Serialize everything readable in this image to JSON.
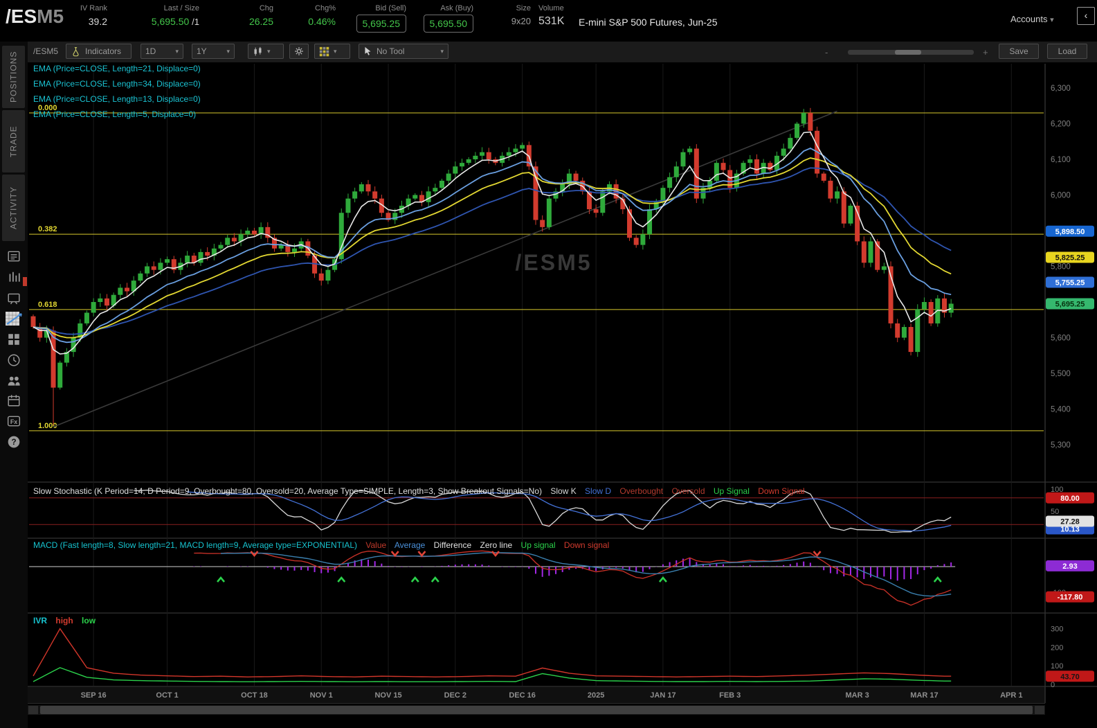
{
  "header": {
    "symbol_prefix": "/ES",
    "symbol_suffix": "M5",
    "iv_rank": {
      "label": "IV Rank",
      "value": "39.2"
    },
    "last_size": {
      "label": "Last / Size",
      "value": "5,695.50",
      "size_suffix": "/1"
    },
    "chg": {
      "label": "Chg",
      "value": "26.25"
    },
    "chg_pct": {
      "label": "Chg%",
      "value": "0.46%"
    },
    "bid": {
      "label": "Bid (Sell)",
      "value": "5,695.25"
    },
    "ask": {
      "label": "Ask (Buy)",
      "value": "5,695.50"
    },
    "size": {
      "label": "Size",
      "value": "9x20"
    },
    "volume": {
      "label": "Volume",
      "value": "531K"
    },
    "description": "E-mini S&P 500 Futures, Jun-25",
    "accounts_label": "Accounts",
    "collapse_glyph": "‹"
  },
  "toolbar": {
    "symbol": "/ESM5",
    "indicators": "Indicators",
    "timeframe": "1D",
    "range": "1Y",
    "tool": "No Tool",
    "save": "Save",
    "load": "Load",
    "zoom_minus": "-",
    "zoom_plus": "+"
  },
  "sidebar": {
    "tabs": [
      {
        "label": "POSITIONS"
      },
      {
        "label": "TRADE"
      },
      {
        "label": "ACTIVITY"
      }
    ]
  },
  "studies": {
    "ema_labels": [
      "EMA (Price=CLOSE, Length=21, Displace=0)",
      "EMA (Price=CLOSE, Length=34, Displace=0)",
      "EMA (Price=CLOSE, Length=13, Displace=0)",
      "EMA (Price=CLOSE, Length=5, Displace=0)"
    ],
    "stochastic": {
      "title": "Slow Stochastic (K Period=14, D Period=9, Overbought=80, Oversold=20, Average Type=SIMPLE, Length=3, Show Breakout Signals=No)",
      "legend": [
        {
          "label": "Slow K",
          "color": "#d8d8d8"
        },
        {
          "label": "Slow D",
          "color": "#4472d8"
        },
        {
          "label": "Overbought",
          "color": "#b33a2e"
        },
        {
          "label": "Oversold",
          "color": "#b33a2e"
        },
        {
          "label": "Up Signal",
          "color": "#2bd24b"
        },
        {
          "label": "Down Signal",
          "color": "#d23b2e"
        }
      ]
    },
    "macd": {
      "title": "MACD (Fast length=8, Slow length=21, MACD length=9, Average type=EXPONENTIAL)",
      "legend": [
        {
          "label": "Value",
          "color": "#c0392b"
        },
        {
          "label": "Average",
          "color": "#4a90d9"
        },
        {
          "label": "Difference",
          "color": "#e0e0e0"
        },
        {
          "label": "Zero line",
          "color": "#e0e0e0"
        },
        {
          "label": "Up signal",
          "color": "#2bd24b"
        },
        {
          "label": "Down signal",
          "color": "#d23b2e"
        }
      ]
    },
    "ivr": {
      "legend": [
        {
          "label": "IVR",
          "color": "#17c3cf"
        },
        {
          "label": "high",
          "color": "#d23b2e"
        },
        {
          "label": "low",
          "color": "#2bd24b"
        }
      ]
    }
  },
  "chart_data": {
    "type": "candlestick",
    "symbol_watermark": "/ESM5",
    "closes": [
      5630,
      5600,
      5620,
      5460,
      5530,
      5560,
      5600,
      5640,
      5670,
      5700,
      5710,
      5690,
      5720,
      5740,
      5730,
      5760,
      5780,
      5800,
      5790,
      5810,
      5820,
      5790,
      5810,
      5830,
      5810,
      5840,
      5830,
      5850,
      5860,
      5880,
      5870,
      5890,
      5900,
      5890,
      5910,
      5880,
      5850,
      5860,
      5840,
      5850,
      5870,
      5830,
      5780,
      5760,
      5790,
      5820,
      5950,
      5990,
      6010,
      6030,
      6010,
      5990,
      5950,
      5930,
      5950,
      5970,
      5990,
      6000,
      5980,
      6010,
      6020,
      6040,
      6060,
      6080,
      6090,
      6100,
      6110,
      6120,
      6100,
      6090,
      6110,
      6120,
      6130,
      6140,
      6080,
      5930,
      5910,
      5990,
      6010,
      6030,
      6060,
      6040,
      6010,
      5960,
      5950,
      6010,
      6030,
      5990,
      5960,
      5880,
      5860,
      5890,
      5960,
      5980,
      6020,
      6050,
      6080,
      6120,
      6130,
      5990,
      6020,
      6040,
      6090,
      6070,
      6020,
      6060,
      6090,
      6100,
      6060,
      6090,
      6070,
      6110,
      6130,
      6160,
      6200,
      6230,
      6180,
      6060,
      6040,
      5990,
      6010,
      5920,
      5970,
      5870,
      5810,
      5870,
      5790,
      5800,
      5640,
      5600,
      5630,
      5560,
      5680,
      5700,
      5640,
      5710,
      5670,
      5695.25
    ],
    "low_overrides": {
      "3": 5355
    },
    "ema_series": [
      {
        "length": 34,
        "color": "#2f55b0"
      },
      {
        "length": 21,
        "color": "#e3d832"
      },
      {
        "length": 13,
        "color": "#6a9fe0"
      },
      {
        "length": 5,
        "color": "#e9e9e9"
      }
    ],
    "fib_levels": [
      {
        "label": "0.000",
        "price": 6230
      },
      {
        "label": "0.382",
        "price": 5890
      },
      {
        "label": "0.618",
        "price": 5679
      },
      {
        "label": "1.000",
        "price": 5339
      }
    ],
    "trendline": {
      "i1": 3,
      "p1": 5350,
      "i2": 120,
      "p2": 6235
    },
    "price_axis": {
      "ticks": [
        {
          "label": "6,300",
          "value": 6300
        },
        {
          "label": "6,200",
          "value": 6200
        },
        {
          "label": "6,100",
          "value": 6100
        },
        {
          "label": "6,000",
          "value": 6000
        },
        {
          "label": "5,800",
          "value": 5800
        },
        {
          "label": "5,600",
          "value": 5600
        },
        {
          "label": "5,500",
          "value": 5500
        },
        {
          "label": "5,400",
          "value": 5400
        },
        {
          "label": "5,300",
          "value": 5300
        }
      ],
      "badges": [
        {
          "text": "5,898.50",
          "value": 5898.5,
          "bg": "#1766d1",
          "fg": "#ffffff"
        },
        {
          "text": "5,825.25",
          "value": 5825.25,
          "bg": "#e8d51f",
          "fg": "#111111"
        },
        {
          "text": "5,755.25",
          "value": 5755.25,
          "bg": "#2f6fd6",
          "fg": "#ffffff"
        },
        {
          "text": "5,695.25",
          "value": 5695.25,
          "bg": "#35b86e",
          "fg": "#07310f"
        }
      ]
    },
    "date_ticks": [
      {
        "label": "SEP 16",
        "i": 9
      },
      {
        "label": "OCT 1",
        "i": 20
      },
      {
        "label": "OCT 18",
        "i": 33
      },
      {
        "label": "NOV 1",
        "i": 43
      },
      {
        "label": "NOV 15",
        "i": 53
      },
      {
        "label": "DEC 2",
        "i": 63
      },
      {
        "label": "DEC 16",
        "i": 73
      },
      {
        "label": "2025",
        "i": 84
      },
      {
        "label": "JAN 17",
        "i": 94
      },
      {
        "label": "FEB 3",
        "i": 104
      },
      {
        "label": "MAR 3",
        "i": 123
      },
      {
        "label": "MAR 17",
        "i": 133
      },
      {
        "label": "APR 1",
        "i": 146
      }
    ],
    "stochastic": {
      "k_period": 14,
      "d_period": 9,
      "length": 3,
      "overbought": 80,
      "oversold": 20,
      "ticks": [
        {
          "label": "100",
          "value": 100
        },
        {
          "label": "50",
          "value": 50
        }
      ],
      "badges": [
        {
          "text": "10.13",
          "value": 10.13,
          "bg": "#2a57c8",
          "fg": "#ffffff"
        },
        {
          "text": "80.00",
          "value": 80,
          "bg": "#c01818",
          "fg": "#ffffff"
        },
        {
          "text": "27.28",
          "value": 27.28,
          "bg": "#e2e2e2",
          "fg": "#111111"
        }
      ]
    },
    "macd": {
      "fast": 8,
      "slow": 21,
      "signal": 9,
      "ticks": [
        {
          "label": "-100",
          "value": -100
        }
      ],
      "badges": [
        {
          "text": "2.93",
          "value": 2.93,
          "bg": "#8d2bd4",
          "fg": "#ffffff"
        },
        {
          "text": "-117.80",
          "value": -117.8,
          "bg": "#c01818",
          "fg": "#ffffff"
        }
      ]
    },
    "ivr": {
      "step": 4,
      "high": [
        45,
        300,
        90,
        60,
        50,
        46,
        42,
        44,
        40,
        42,
        46,
        42,
        40,
        44,
        42,
        40,
        42,
        46,
        44,
        88,
        60,
        46,
        44,
        42,
        40,
        42,
        44,
        42,
        46,
        50,
        56,
        62,
        58,
        50,
        44
      ],
      "low": [
        15,
        90,
        38,
        24,
        20,
        18,
        16,
        15,
        14,
        15,
        16,
        15,
        14,
        15,
        14,
        14,
        15,
        16,
        15,
        58,
        34,
        20,
        18,
        16,
        15,
        15,
        16,
        15,
        16,
        18,
        24,
        30,
        28,
        22,
        18
      ],
      "ticks": [
        {
          "label": "300",
          "value": 300
        },
        {
          "label": "200",
          "value": 200
        },
        {
          "label": "100",
          "value": 100
        },
        {
          "label": "0",
          "value": 0
        }
      ],
      "badge": {
        "text": "43.70",
        "value": 43.7,
        "bg": "#c01818",
        "fg": "#161616"
      }
    },
    "palette": {
      "up_candle": "#2faa3b",
      "down_candle": "#d23b2e",
      "fib": "#d8c92e",
      "fib_text": "#e3d832",
      "slow_k": "#d8d8d8",
      "slow_d": "#4472d8",
      "ob_os_line": "#8a1f1f",
      "macd_value": "#c43027",
      "macd_avg": "#3a7fae",
      "macd_hist": "#a428e8",
      "zero_line": "#cfcfcf",
      "ivr_high": "#d2362a",
      "ivr_low": "#2bd24b",
      "up_signal": "#2bd24b",
      "down_signal": "#e04438",
      "grid": "#1a1a1a",
      "axis_text": "#808080",
      "date_text": "#8f8f8f",
      "watermark": "#383838",
      "trendline": "#3a3a3a",
      "separator": "#2b2b2b"
    }
  }
}
